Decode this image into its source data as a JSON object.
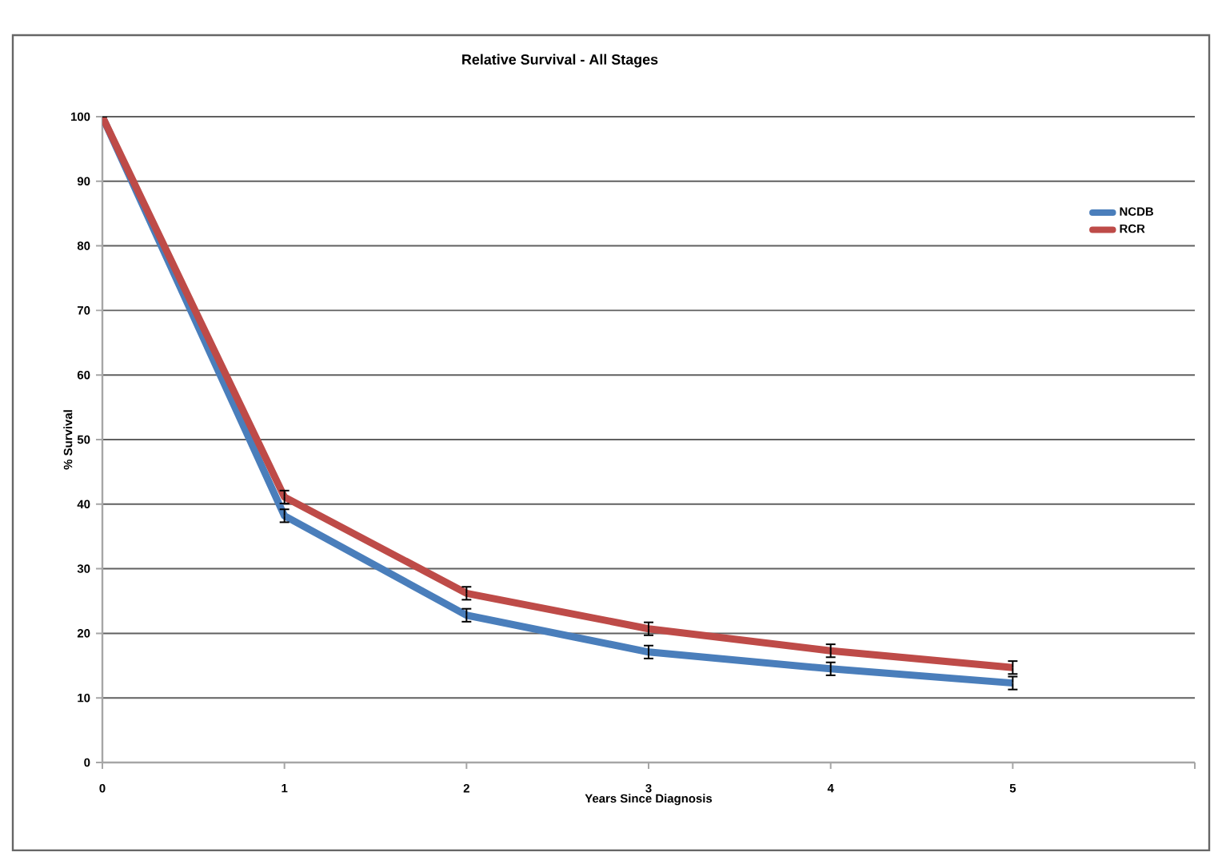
{
  "chart_data": {
    "type": "line",
    "title": "Relative Survival -  All Stages",
    "xlabel": "Years Since Diagnosis",
    "ylabel": "% Survival",
    "x": [
      0,
      1,
      2,
      3,
      4,
      5
    ],
    "series": [
      {
        "name": "NCDB",
        "color": "#4a7ebb",
        "values": [
          100,
          38.2,
          22.8,
          17.1,
          14.5,
          12.3
        ],
        "errors": [
          null,
          1,
          1,
          1,
          1,
          1
        ]
      },
      {
        "name": "RCR",
        "color": "#be4b48",
        "values": [
          100,
          41.1,
          26.2,
          20.7,
          17.3,
          14.7
        ],
        "errors": [
          null,
          1,
          1,
          1,
          1,
          1
        ]
      }
    ],
    "xlim": [
      0,
      6
    ],
    "ylim": [
      0,
      100
    ],
    "xticks": [
      0,
      1,
      2,
      3,
      4,
      5,
      {
        "value": 6,
        "label": null
      }
    ],
    "yticks": [
      0,
      10,
      20,
      30,
      40,
      50,
      60,
      70,
      80,
      90,
      100
    ],
    "grid": "y",
    "legend": "top right",
    "marker": "none",
    "line_style": "solid"
  }
}
